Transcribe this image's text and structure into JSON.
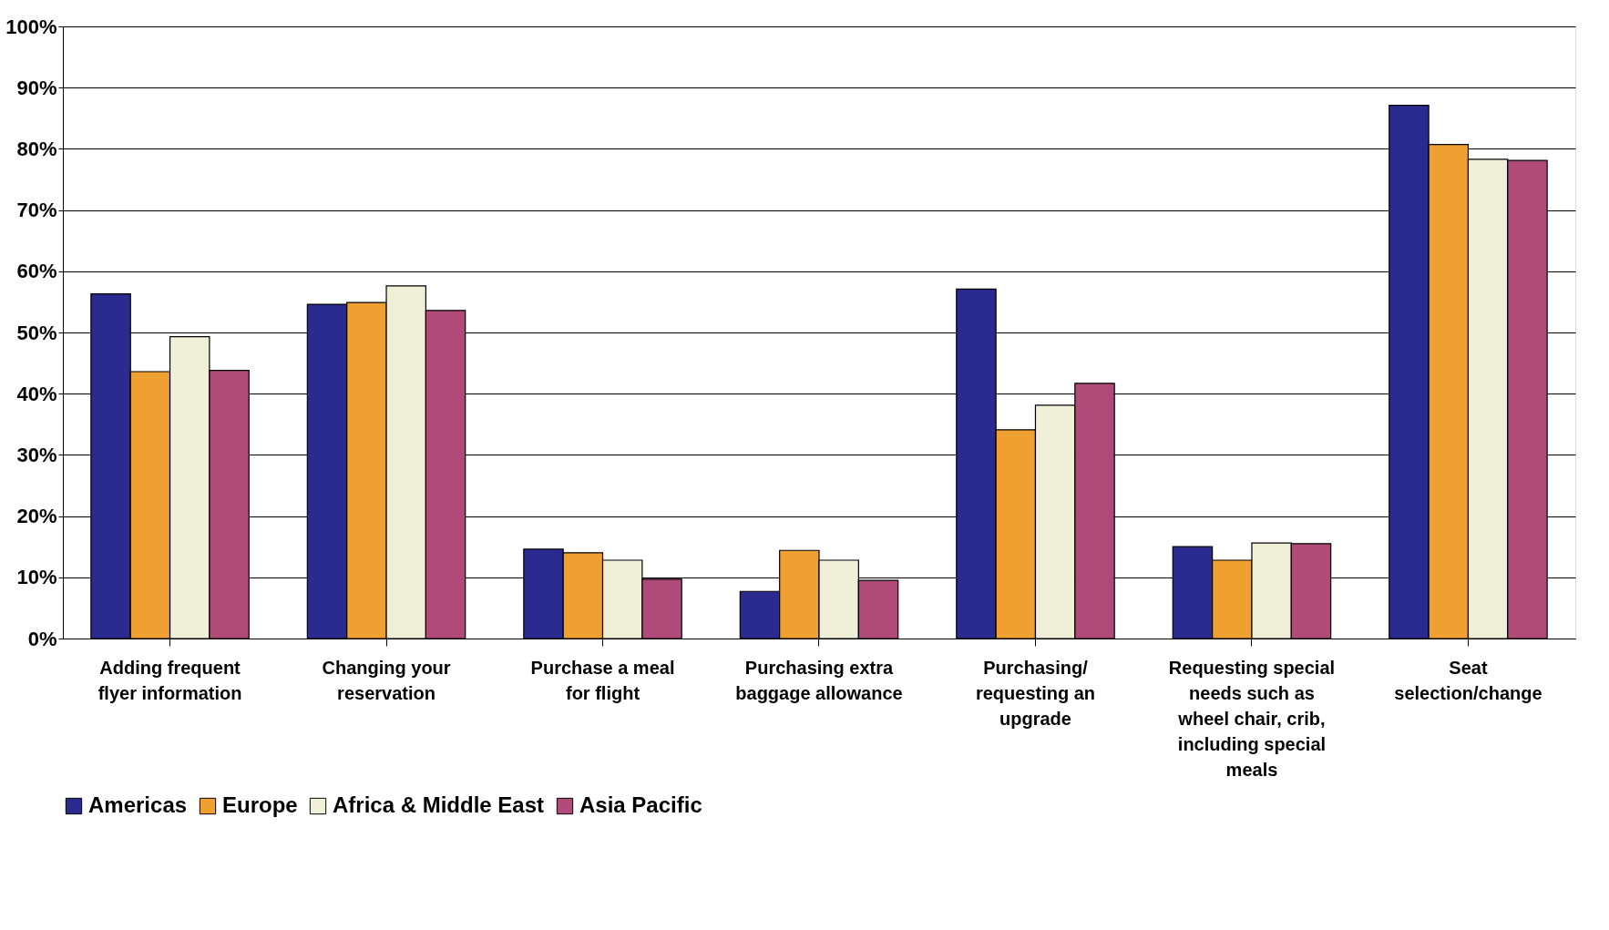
{
  "chart_data": {
    "type": "bar",
    "categories": [
      "Adding frequent flyer information",
      "Changing your reservation",
      "Purchase a meal for flight",
      "Purchasing extra baggage allowance",
      "Purchasing/ requesting an upgrade",
      "Requesting special needs such as wheel chair, crib, including special meals",
      "Seat selection/change"
    ],
    "series": [
      {
        "name": "Americas",
        "color": "#2b2b8f",
        "values": [
          56.3,
          54.6,
          14.6,
          7.7,
          57.1,
          15.0,
          87.1
        ]
      },
      {
        "name": "Europe",
        "color": "#f0a030",
        "values": [
          43.6,
          54.9,
          14.0,
          14.4,
          34.1,
          12.8,
          80.7
        ]
      },
      {
        "name": "Africa & Middle East",
        "color": "#f0f0d8",
        "values": [
          49.3,
          57.6,
          12.8,
          12.8,
          38.1,
          15.6,
          78.3
        ]
      },
      {
        "name": "Asia Pacific",
        "color": "#b04a78",
        "values": [
          43.8,
          53.6,
          9.7,
          9.5,
          41.7,
          15.5,
          78.1
        ]
      }
    ],
    "ylim": [
      0,
      100
    ],
    "yticks": [
      {
        "value": 0,
        "label": "0%"
      },
      {
        "value": 10,
        "label": "10%"
      },
      {
        "value": 20,
        "label": "20%"
      },
      {
        "value": 30,
        "label": "30%"
      },
      {
        "value": 40,
        "label": "40%"
      },
      {
        "value": 50,
        "label": "50%"
      },
      {
        "value": 60,
        "label": "60%"
      },
      {
        "value": 70,
        "label": "70%"
      },
      {
        "value": 80,
        "label": "80%"
      },
      {
        "value": 90,
        "label": "90%"
      },
      {
        "value": 100,
        "label": "100%"
      }
    ],
    "grid": "y",
    "legend": "bottom"
  }
}
